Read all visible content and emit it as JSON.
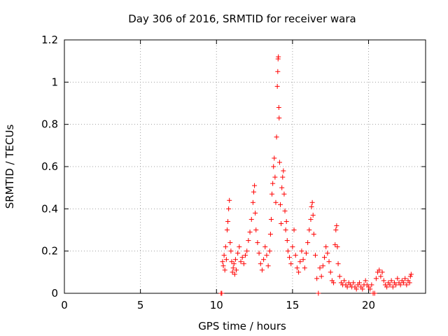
{
  "chart_data": {
    "type": "scatter",
    "title": "Day 306 of 2016, SRMTID for receiver wara",
    "xlabel": "GPS time / hours",
    "ylabel": "SRMTID / TECUs",
    "xlim": [
      0,
      23.75
    ],
    "ylim": [
      0,
      1.2
    ],
    "xticks": [
      0,
      5,
      10,
      15,
      20
    ],
    "xtick_labels": [
      "0",
      "5",
      "10",
      "15",
      "20"
    ],
    "yticks": [
      0,
      0.2,
      0.4,
      0.6,
      0.8,
      1.0,
      1.2
    ],
    "ytick_labels": [
      "0",
      "0.2",
      "0.4",
      "0.6",
      "0.8",
      "1",
      "1.2"
    ],
    "grid": true,
    "marker": "+",
    "color": "#ff0000",
    "series": [
      {
        "name": "SRMTID",
        "points": [
          [
            10.3,
            0.0
          ],
          [
            10.35,
            0.0
          ],
          [
            10.4,
            0.15
          ],
          [
            10.45,
            0.13
          ],
          [
            10.5,
            0.18
          ],
          [
            10.55,
            0.11
          ],
          [
            10.6,
            0.22
          ],
          [
            10.65,
            0.16
          ],
          [
            10.7,
            0.3
          ],
          [
            10.75,
            0.34
          ],
          [
            10.8,
            0.4
          ],
          [
            10.85,
            0.44
          ],
          [
            10.9,
            0.24
          ],
          [
            10.95,
            0.2
          ],
          [
            11.0,
            0.15
          ],
          [
            11.05,
            0.1
          ],
          [
            11.1,
            0.12
          ],
          [
            11.15,
            0.14
          ],
          [
            11.2,
            0.09
          ],
          [
            11.25,
            0.16
          ],
          [
            11.3,
            0.11
          ],
          [
            11.4,
            0.19
          ],
          [
            11.5,
            0.22
          ],
          [
            11.6,
            0.15
          ],
          [
            11.7,
            0.17
          ],
          [
            11.8,
            0.14
          ],
          [
            11.9,
            0.18
          ],
          [
            12.0,
            0.2
          ],
          [
            12.1,
            0.25
          ],
          [
            12.2,
            0.29
          ],
          [
            12.3,
            0.35
          ],
          [
            12.4,
            0.43
          ],
          [
            12.45,
            0.48
          ],
          [
            12.5,
            0.51
          ],
          [
            12.55,
            0.38
          ],
          [
            12.6,
            0.3
          ],
          [
            12.7,
            0.24
          ],
          [
            12.8,
            0.19
          ],
          [
            12.9,
            0.14
          ],
          [
            13.0,
            0.11
          ],
          [
            13.1,
            0.16
          ],
          [
            13.2,
            0.22
          ],
          [
            13.3,
            0.18
          ],
          [
            13.4,
            0.13
          ],
          [
            13.5,
            0.2
          ],
          [
            13.55,
            0.28
          ],
          [
            13.6,
            0.35
          ],
          [
            13.65,
            0.47
          ],
          [
            13.7,
            0.52
          ],
          [
            13.75,
            0.6
          ],
          [
            13.8,
            0.64
          ],
          [
            13.85,
            0.55
          ],
          [
            13.9,
            0.43
          ],
          [
            13.95,
            0.74
          ],
          [
            14.0,
            0.98
          ],
          [
            14.03,
            1.05
          ],
          [
            14.05,
            1.11
          ],
          [
            14.07,
            1.12
          ],
          [
            14.1,
            0.88
          ],
          [
            14.12,
            0.83
          ],
          [
            14.15,
            0.62
          ],
          [
            14.2,
            0.42
          ],
          [
            14.25,
            0.33
          ],
          [
            14.3,
            0.5
          ],
          [
            14.35,
            0.55
          ],
          [
            14.4,
            0.58
          ],
          [
            14.45,
            0.47
          ],
          [
            14.5,
            0.39
          ],
          [
            14.55,
            0.3
          ],
          [
            14.6,
            0.34
          ],
          [
            14.65,
            0.25
          ],
          [
            14.7,
            0.2
          ],
          [
            14.8,
            0.17
          ],
          [
            14.9,
            0.14
          ],
          [
            15.0,
            0.22
          ],
          [
            15.1,
            0.3
          ],
          [
            15.2,
            0.18
          ],
          [
            15.3,
            0.12
          ],
          [
            15.4,
            0.1
          ],
          [
            15.5,
            0.15
          ],
          [
            15.6,
            0.2
          ],
          [
            15.7,
            0.16
          ],
          [
            15.8,
            0.12
          ],
          [
            15.9,
            0.19
          ],
          [
            16.0,
            0.24
          ],
          [
            16.1,
            0.3
          ],
          [
            16.2,
            0.35
          ],
          [
            16.25,
            0.41
          ],
          [
            16.3,
            0.43
          ],
          [
            16.35,
            0.37
          ],
          [
            16.4,
            0.28
          ],
          [
            16.5,
            0.18
          ],
          [
            16.6,
            0.07
          ],
          [
            16.7,
            0.0
          ],
          [
            16.8,
            0.12
          ],
          [
            16.9,
            0.08
          ],
          [
            17.0,
            0.13
          ],
          [
            17.1,
            0.17
          ],
          [
            17.2,
            0.22
          ],
          [
            17.3,
            0.19
          ],
          [
            17.4,
            0.15
          ],
          [
            17.5,
            0.1
          ],
          [
            17.6,
            0.06
          ],
          [
            17.7,
            0.05
          ],
          [
            17.8,
            0.23
          ],
          [
            17.85,
            0.3
          ],
          [
            17.9,
            0.32
          ],
          [
            17.95,
            0.22
          ],
          [
            18.0,
            0.14
          ],
          [
            18.1,
            0.08
          ],
          [
            18.2,
            0.05
          ],
          [
            18.3,
            0.04
          ],
          [
            18.4,
            0.06
          ],
          [
            18.5,
            0.04
          ],
          [
            18.6,
            0.03
          ],
          [
            18.7,
            0.05
          ],
          [
            18.8,
            0.04
          ],
          [
            18.9,
            0.03
          ],
          [
            19.0,
            0.05
          ],
          [
            19.1,
            0.03
          ],
          [
            19.2,
            0.02
          ],
          [
            19.3,
            0.04
          ],
          [
            19.4,
            0.05
          ],
          [
            19.5,
            0.03
          ],
          [
            19.6,
            0.02
          ],
          [
            19.7,
            0.04
          ],
          [
            19.8,
            0.06
          ],
          [
            19.9,
            0.04
          ],
          [
            20.0,
            0.03
          ],
          [
            20.1,
            0.02
          ],
          [
            20.2,
            0.04
          ],
          [
            20.3,
            0.0
          ],
          [
            20.4,
            0.0
          ],
          [
            20.5,
            0.07
          ],
          [
            20.6,
            0.1
          ],
          [
            20.7,
            0.11
          ],
          [
            20.8,
            0.08
          ],
          [
            20.9,
            0.1
          ],
          [
            21.0,
            0.06
          ],
          [
            21.1,
            0.04
          ],
          [
            21.2,
            0.03
          ],
          [
            21.3,
            0.05
          ],
          [
            21.4,
            0.04
          ],
          [
            21.5,
            0.06
          ],
          [
            21.6,
            0.03
          ],
          [
            21.7,
            0.05
          ],
          [
            21.8,
            0.04
          ],
          [
            21.9,
            0.07
          ],
          [
            22.0,
            0.05
          ],
          [
            22.1,
            0.04
          ],
          [
            22.2,
            0.06
          ],
          [
            22.3,
            0.05
          ],
          [
            22.4,
            0.07
          ],
          [
            22.5,
            0.04
          ],
          [
            22.6,
            0.06
          ],
          [
            22.7,
            0.05
          ],
          [
            22.75,
            0.08
          ],
          [
            22.8,
            0.09
          ]
        ]
      }
    ]
  }
}
